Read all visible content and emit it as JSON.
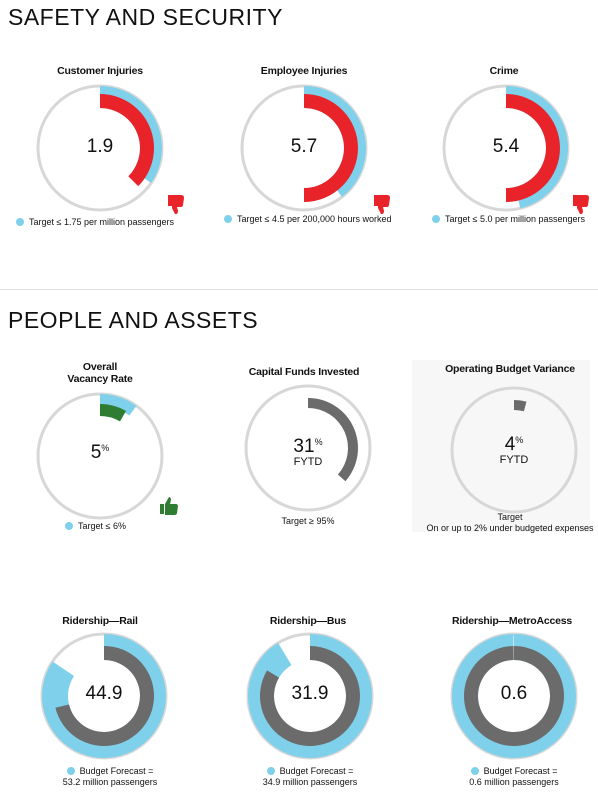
{
  "colors": {
    "ring": "#d7d7d7",
    "target": "#7fd0ea",
    "bad": "#e8232a",
    "good": "#2e7d32",
    "neutral": "#6b6b6b"
  },
  "sections": {
    "safety": "SAFETY AND SECURITY",
    "people": "PEOPLE AND ASSETS"
  },
  "panels": {
    "customer_injuries": {
      "title": "Customer Injuries",
      "value": "1.9",
      "legend": "Target ≤ 1.75 per million passengers",
      "thumb": "thumbs-down-icon"
    },
    "employee_injuries": {
      "title": "Employee Injuries",
      "value": "5.7",
      "legend": "Target ≤ 4.5 per 200,000 hours worked",
      "thumb": "thumbs-down-icon"
    },
    "crime": {
      "title": "Crime",
      "value": "5.4",
      "legend": "Target ≤ 5.0 per million passengers",
      "thumb": "thumbs-down-icon"
    },
    "vacancy": {
      "title_line1": "Overall",
      "title_line2": "Vacancy Rate",
      "value": "5",
      "unit": "%",
      "legend": "Target ≤ 6%",
      "thumb": "thumbs-up-icon"
    },
    "capital_funds": {
      "title": "Capital Funds Invested",
      "value": "31",
      "unit": "%",
      "sub": "FYTD",
      "caption": "Target ≥ 95%"
    },
    "operating_budget": {
      "title": "Operating Budget Variance",
      "value": "4",
      "unit": "%",
      "sub": "FYTD",
      "caption_line1": "Target",
      "caption_line2": "On or up to 2% under budgeted expenses"
    },
    "ridership_rail": {
      "title": "Ridership—Rail",
      "value": "44.9",
      "legend_line1": "Budget Forecast =",
      "legend_line2": "53.2 million passengers"
    },
    "ridership_bus": {
      "title": "Ridership—Bus",
      "value": "31.9",
      "legend_line1": "Budget Forecast =",
      "legend_line2": "34.9 million passengers"
    },
    "ridership_metroaccess": {
      "title": "Ridership—MetroAccess",
      "value": "0.6",
      "legend_line1": "Budget Forecast =",
      "legend_line2": "0.6 million passengers"
    }
  },
  "chart_data": [
    {
      "type": "gauge",
      "title": "Customer Injuries",
      "actual": 1.9,
      "target": 1.75,
      "status": "bad"
    },
    {
      "type": "gauge",
      "title": "Employee Injuries",
      "actual": 5.7,
      "target": 4.5,
      "status": "bad"
    },
    {
      "type": "gauge",
      "title": "Crime",
      "actual": 5.4,
      "target": 5.0,
      "status": "bad"
    },
    {
      "type": "gauge",
      "title": "Overall Vacancy Rate",
      "actual": 5,
      "target": 6,
      "unit": "%",
      "status": "good"
    },
    {
      "type": "gauge",
      "title": "Capital Funds Invested",
      "actual": 31,
      "target": 95,
      "unit": "%"
    },
    {
      "type": "gauge",
      "title": "Operating Budget Variance",
      "actual": 4,
      "unit": "%"
    },
    {
      "type": "gauge",
      "title": "Ridership—Rail",
      "actual": 44.9,
      "forecast": 53.2
    },
    {
      "type": "gauge",
      "title": "Ridership—Bus",
      "actual": 31.9,
      "forecast": 34.9
    },
    {
      "type": "gauge",
      "title": "Ridership—MetroAccess",
      "actual": 0.6,
      "forecast": 0.6
    }
  ]
}
